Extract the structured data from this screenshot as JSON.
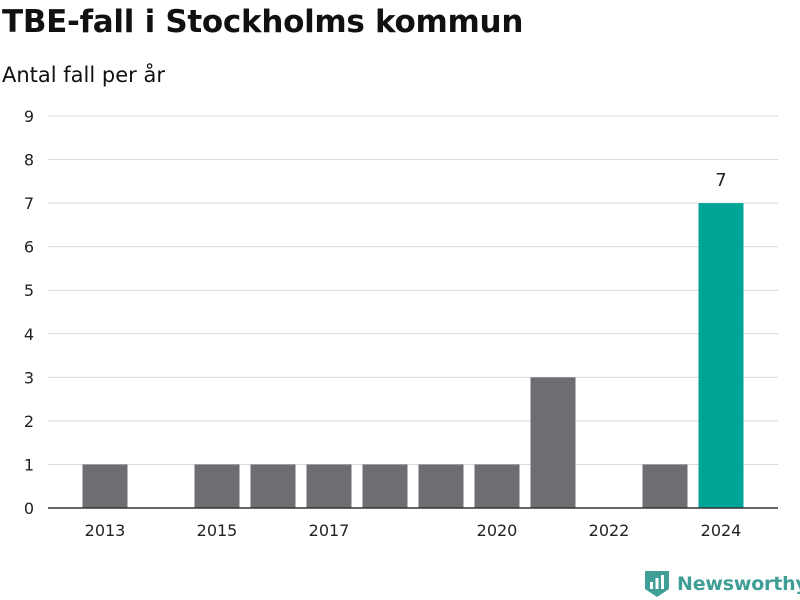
{
  "chart_data": {
    "type": "bar",
    "title": "TBE-fall i Stockholms kommun",
    "subtitle": "Antal fall per år",
    "categories": [
      "2013",
      "2014",
      "2015",
      "2016",
      "2017",
      "2018",
      "2019",
      "2020",
      "2021",
      "2022",
      "2023",
      "2024"
    ],
    "values": [
      1,
      0,
      1,
      1,
      1,
      1,
      1,
      1,
      3,
      0,
      1,
      7
    ],
    "x_tick_labels": [
      "2013",
      "2015",
      "2017",
      "2020",
      "2022",
      "2024"
    ],
    "highlight_category": "2024",
    "data_labels": [
      {
        "category": "2024",
        "text": "7"
      }
    ],
    "ylim": [
      0,
      9
    ],
    "y_ticks": [
      0,
      1,
      2,
      3,
      4,
      5,
      6,
      7,
      8,
      9
    ],
    "grid": true,
    "xlabel": "",
    "ylabel": ""
  },
  "colors": {
    "bar": "#6e6d72",
    "highlight": "#00a597",
    "grid": "#d9d9d9",
    "axis": "#333333",
    "text": "#222222",
    "brand": "#3f9e96"
  },
  "branding": {
    "name": "Newsworthy",
    "icon": "newsworthy-logo-icon"
  }
}
